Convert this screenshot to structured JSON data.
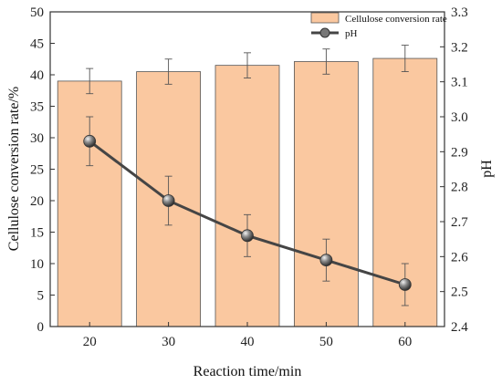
{
  "chart_data": {
    "type": "bar",
    "categories": [
      "20",
      "30",
      "40",
      "50",
      "60"
    ],
    "xlabel": "Reaction time/min",
    "ylabel_left": "Cellulose conversion rate/%",
    "ylabel_right": "pH",
    "ylim_left": [
      0,
      50
    ],
    "ylim_right": [
      2.4,
      3.3
    ],
    "yticks_left": [
      "0",
      "5",
      "10",
      "15",
      "20",
      "25",
      "30",
      "35",
      "40",
      "45",
      "50"
    ],
    "yticks_right": [
      "2.4",
      "2.5",
      "2.6",
      "2.7",
      "2.8",
      "2.9",
      "3.0",
      "3.1",
      "3.2",
      "3.3"
    ],
    "grid": false,
    "legend_position": "top-right",
    "series": [
      {
        "name": "Cellulose conversion rate",
        "kind": "bar",
        "axis": "left",
        "values": [
          39.0,
          40.5,
          41.5,
          42.1,
          42.6
        ],
        "errors": [
          2.0,
          2.0,
          2.0,
          2.0,
          2.1
        ],
        "color": "#fac8a0"
      },
      {
        "name": "pH",
        "kind": "line",
        "axis": "right",
        "values": [
          2.93,
          2.76,
          2.66,
          2.59,
          2.52
        ],
        "errors": [
          0.07,
          0.07,
          0.06,
          0.06,
          0.06
        ],
        "color": "#454545"
      }
    ]
  }
}
